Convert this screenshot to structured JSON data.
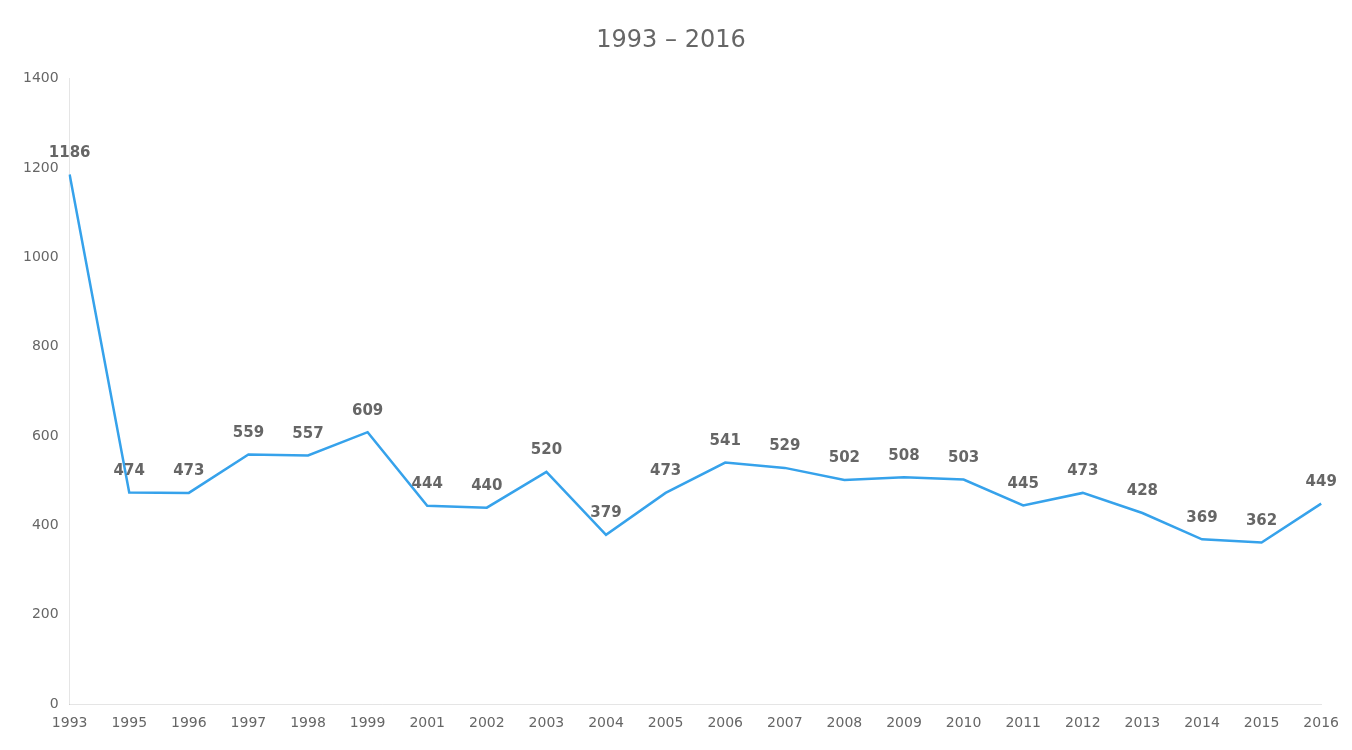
{
  "chart_data": {
    "type": "line",
    "title": "1993 – 2016",
    "categories": [
      "1993",
      "1995",
      "1996",
      "1997",
      "1998",
      "1999",
      "2001",
      "2002",
      "2003",
      "2004",
      "2005",
      "2006",
      "2007",
      "2008",
      "2009",
      "2010",
      "2011",
      "2012",
      "2013",
      "2014",
      "2015",
      "2016"
    ],
    "values": [
      1186,
      474,
      473,
      559,
      557,
      609,
      444,
      440,
      520,
      379,
      473,
      541,
      529,
      502,
      508,
      503,
      445,
      473,
      428,
      369,
      362,
      449
    ],
    "ylim": [
      0,
      1400
    ],
    "yticks": [
      0,
      200,
      400,
      600,
      800,
      1000,
      1200,
      1400
    ],
    "grid": false,
    "data_labels": true
  }
}
